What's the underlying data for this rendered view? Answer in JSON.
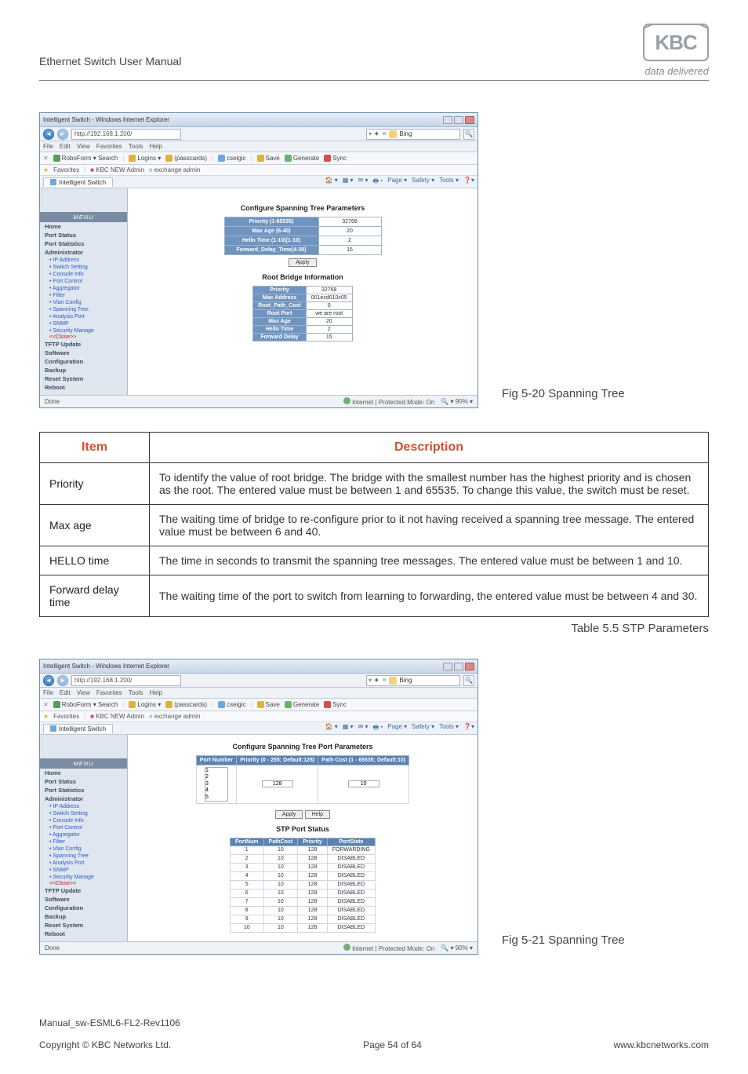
{
  "header": {
    "doc_title": "Ethernet Switch User Manual",
    "logo_tagline": "data delivered",
    "logo_letters": "KBC",
    "logo_colors": {
      "box_stroke": "#9aa0a6",
      "letters": "#9aa0a6"
    }
  },
  "screenshot1": {
    "window_title": "Intelligent Switch - Windows Internet Explorer",
    "url": "http://192.168.1.200/",
    "search_text": "Bing",
    "menubar": [
      "File",
      "Edit",
      "View",
      "Favorites",
      "Tools",
      "Help"
    ],
    "toolbar": {
      "roboform": "RoboForm ▾ Search",
      "items": [
        "Logins ▾",
        "(passcards)",
        "cseigic",
        "Save",
        "Generate",
        "Sync"
      ]
    },
    "favorites_label": "Favorites",
    "fav_items": [
      "KBC NEW Admin",
      "exchange admin"
    ],
    "tab_label": "Intelligent Switch",
    "right_cmds": [
      "Page ▾",
      "Safety ▾",
      "Tools ▾"
    ],
    "sidebar": {
      "menu_label": "MENU",
      "items_top": [
        "Home",
        "Port Status",
        "Port Statistics",
        "Administrator"
      ],
      "sub_items": [
        "IP Address",
        "Switch Setting",
        "Console Info",
        "Port Control",
        "Aggregator",
        "Filter",
        "Vlan Config",
        "Spanning Tree",
        "Analysis Port",
        "SNMP",
        "Security Manage"
      ],
      "close_label": "<<Close>>",
      "items_bottom": [
        "TFTP Update",
        "Software",
        "Configuration",
        "Backup",
        "Reset System",
        "Reboot"
      ]
    },
    "main": {
      "cfg_title": "Configure Spanning Tree Parameters",
      "cfg_rows": [
        {
          "label": "Priority (1-65535)",
          "value": "32768"
        },
        {
          "label": "Max Age (6-40)",
          "value": "20"
        },
        {
          "label": "Hello Time (1-10)(1-10)",
          "value": "2"
        },
        {
          "label": "Forward_Delay_Time(4-30)",
          "value": "15"
        }
      ],
      "apply_label": "Apply",
      "info_title": "Root Bridge Information",
      "info_rows": [
        {
          "label": "Priority",
          "value": "32768"
        },
        {
          "label": "Mac Address",
          "value": "001ecd010c05"
        },
        {
          "label": "Root_Path_Cost",
          "value": "0"
        },
        {
          "label": "Root Port",
          "value": "we are root"
        },
        {
          "label": "Max Age",
          "value": "20"
        },
        {
          "label": "Hello Time",
          "value": "2"
        },
        {
          "label": "Forward Delay",
          "value": "15"
        }
      ]
    },
    "status_left": "Done",
    "status_center": "Internet | Protected Mode: On",
    "status_zoom": "90%",
    "caption": "Fig 5-20 Spanning Tree"
  },
  "params_table": {
    "headers": {
      "item": "Item",
      "desc": "Description"
    },
    "rows": [
      {
        "item": "Priority",
        "desc": "To identify the value of root bridge. The bridge with the smallest number has the highest priority and is chosen as the root. The entered value must be between 1 and 65535. To change this value, the switch must be reset."
      },
      {
        "item": "Max age",
        "desc": "The waiting time of bridge to re-configure prior to it not having received a spanning tree message. The entered value must be between 6 and 40."
      },
      {
        "item": "HELLO time",
        "desc": "The time in seconds to transmit the spanning tree messages. The entered value must be between 1 and 10."
      },
      {
        "item": "Forward delay time",
        "desc": "The waiting time of the port to switch from learning to forwarding, the entered value must be between 4 and 30."
      }
    ],
    "caption": "Table 5.5 STP Parameters"
  },
  "screenshot2": {
    "window_title": "Intelligent Switch - Windows Internet Explorer",
    "url": "http://192.168.1.200/",
    "search_text": "Bing",
    "menubar": [
      "File",
      "Edit",
      "View",
      "Favorites",
      "Tools",
      "Help"
    ],
    "toolbar": {
      "roboform": "RoboForm ▾ Search",
      "items": [
        "Logins ▾",
        "(passcards)",
        "cseigic",
        "Save",
        "Generate",
        "Sync"
      ]
    },
    "favorites_label": "Favorites",
    "fav_items": [
      "KBC NEW Admin",
      "exchange admin"
    ],
    "tab_label": "Intelligent Switch",
    "right_cmds": [
      "Page ▾",
      "Safety ▾",
      "Tools ▾"
    ],
    "sidebar": {
      "menu_label": "MENU",
      "items_top": [
        "Home",
        "Port Status",
        "Port Statistics",
        "Administrator"
      ],
      "sub_items": [
        "IP Address",
        "Switch Setting",
        "Console Info",
        "Port Control",
        "Aggregator",
        "Filter",
        "Vlan Config",
        "Spanning Tree",
        "Analysis Port",
        "SNMP",
        "Security Manage"
      ],
      "close_label": "<<Close>>",
      "items_bottom": [
        "TFTP Update",
        "Software",
        "Configuration",
        "Backup",
        "Reset System",
        "Reboot"
      ]
    },
    "main": {
      "cfg_title": "Configure Spanning Tree Port Parameters",
      "port_headers": [
        "Port Number",
        "Priority (0 - 255; Default:128)",
        "Path Cost (1 - 65535; Default:10)"
      ],
      "port_sel_options": [
        "1",
        "2",
        "3",
        "4",
        "5"
      ],
      "priority_val": "128",
      "pathcost_val": "10",
      "apply_label": "Apply",
      "help_label": "Help",
      "status_title": "STP Port Status",
      "status_headers": [
        "PortNum",
        "PathCost",
        "Priority",
        "PortState"
      ],
      "status_rows": [
        [
          "1",
          "10",
          "128",
          "FORWARDING"
        ],
        [
          "2",
          "10",
          "128",
          "DISABLED"
        ],
        [
          "3",
          "10",
          "128",
          "DISABLED"
        ],
        [
          "4",
          "10",
          "128",
          "DISABLED"
        ],
        [
          "5",
          "10",
          "128",
          "DISABLED"
        ],
        [
          "6",
          "10",
          "128",
          "DISABLED"
        ],
        [
          "7",
          "10",
          "128",
          "DISABLED"
        ],
        [
          "8",
          "10",
          "128",
          "DISABLED"
        ],
        [
          "9",
          "10",
          "128",
          "DISABLED"
        ],
        [
          "10",
          "10",
          "128",
          "DISABLED"
        ]
      ]
    },
    "status_left": "Done",
    "status_center": "Internet | Protected Mode: On",
    "status_zoom": "90%",
    "caption": "Fig 5-21 Spanning Tree"
  },
  "footer": {
    "filename": "Manual_sw-ESML6-FL2-Rev1106",
    "copyright": "Copyright © KBC Networks Ltd.",
    "page": "Page 54 of 64",
    "url": "www.kbcnetworks.com"
  },
  "colors": {
    "accent_orange": "#d05030",
    "browser_chrome": "#eef2f8",
    "sidebar_bg": "#dfe6ef",
    "table_header_bg": "#5a82b3"
  }
}
